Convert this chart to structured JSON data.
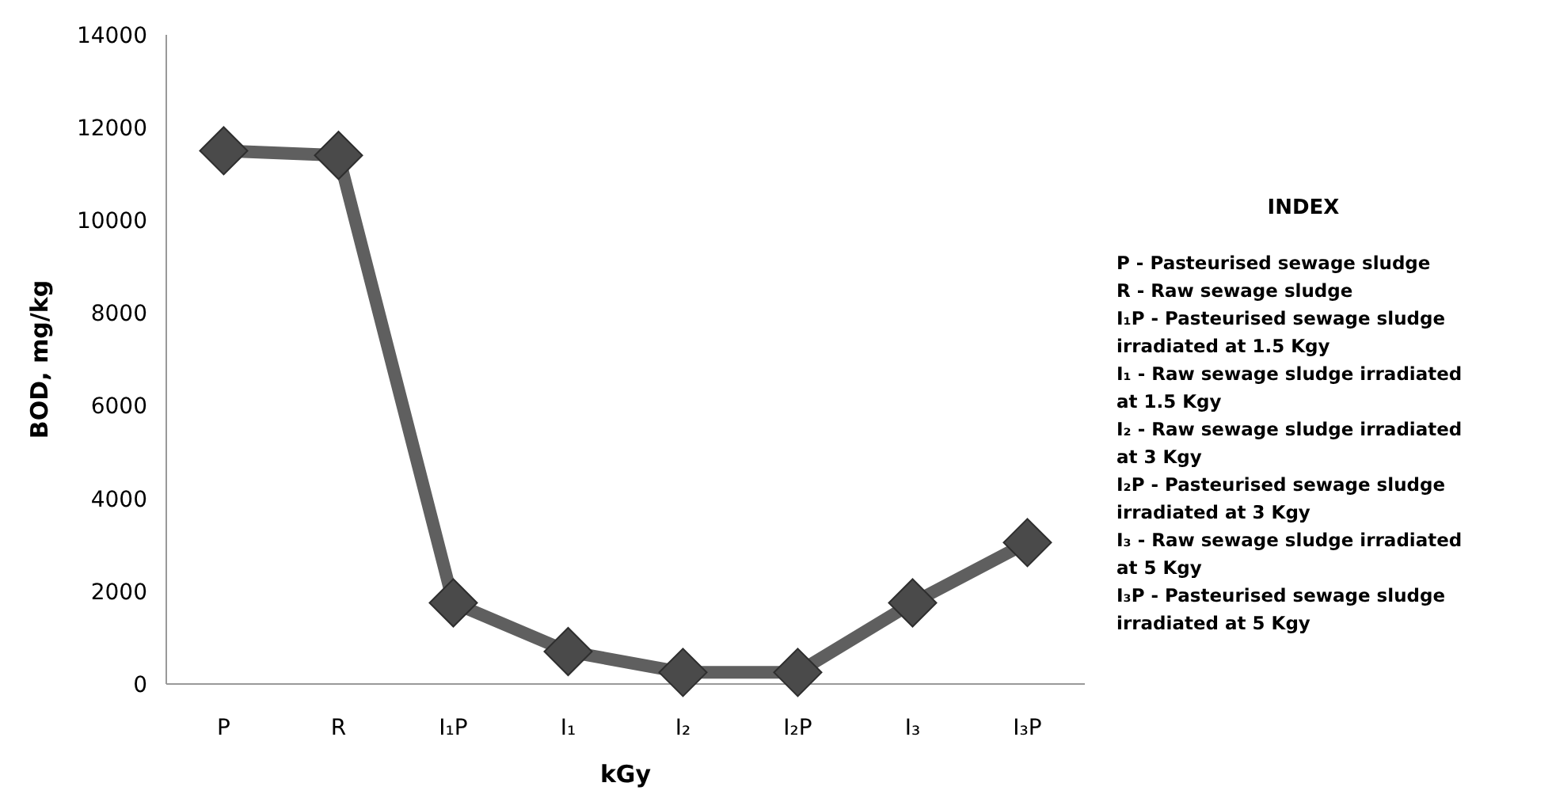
{
  "chart_data": {
    "type": "line",
    "xlabel": "kGy",
    "ylabel": "BOD, mg/kg",
    "categories": [
      "P",
      "R",
      "I₁P",
      "I₁",
      "I₂",
      "I₂P",
      "I₃",
      "I₃P"
    ],
    "series": [
      {
        "color": "#5f5f5f",
        "values": [
          11500,
          11400,
          1750,
          700,
          250,
          250,
          1750,
          3050
        ]
      }
    ],
    "ylim": [
      0,
      14000
    ],
    "yticks": [
      0,
      2000,
      4000,
      6000,
      8000,
      10000,
      12000,
      14000
    ],
    "marker": "diamond",
    "line_style": "solid",
    "grid": false,
    "annotations": [
      "INDEX",
      "P - Pasteurised sewage sludge",
      "R - Raw sewage sludge",
      "I₁P - Pasteurised sewage sludge irradiated at 1.5 Kgy",
      "I₁ - Raw sewage sludge irradiated at 1.5 Kgy",
      "I₂ - Raw sewage sludge irradiated at 3 Kgy",
      "I₂P - Pasteurised sewage sludge irradiated at 3 Kgy",
      "I₃ - Raw sewage sludge irradiated at 5 Kgy",
      "I₃P - Pasteurised sewage sludge irradiated at 5 Kgy"
    ]
  }
}
